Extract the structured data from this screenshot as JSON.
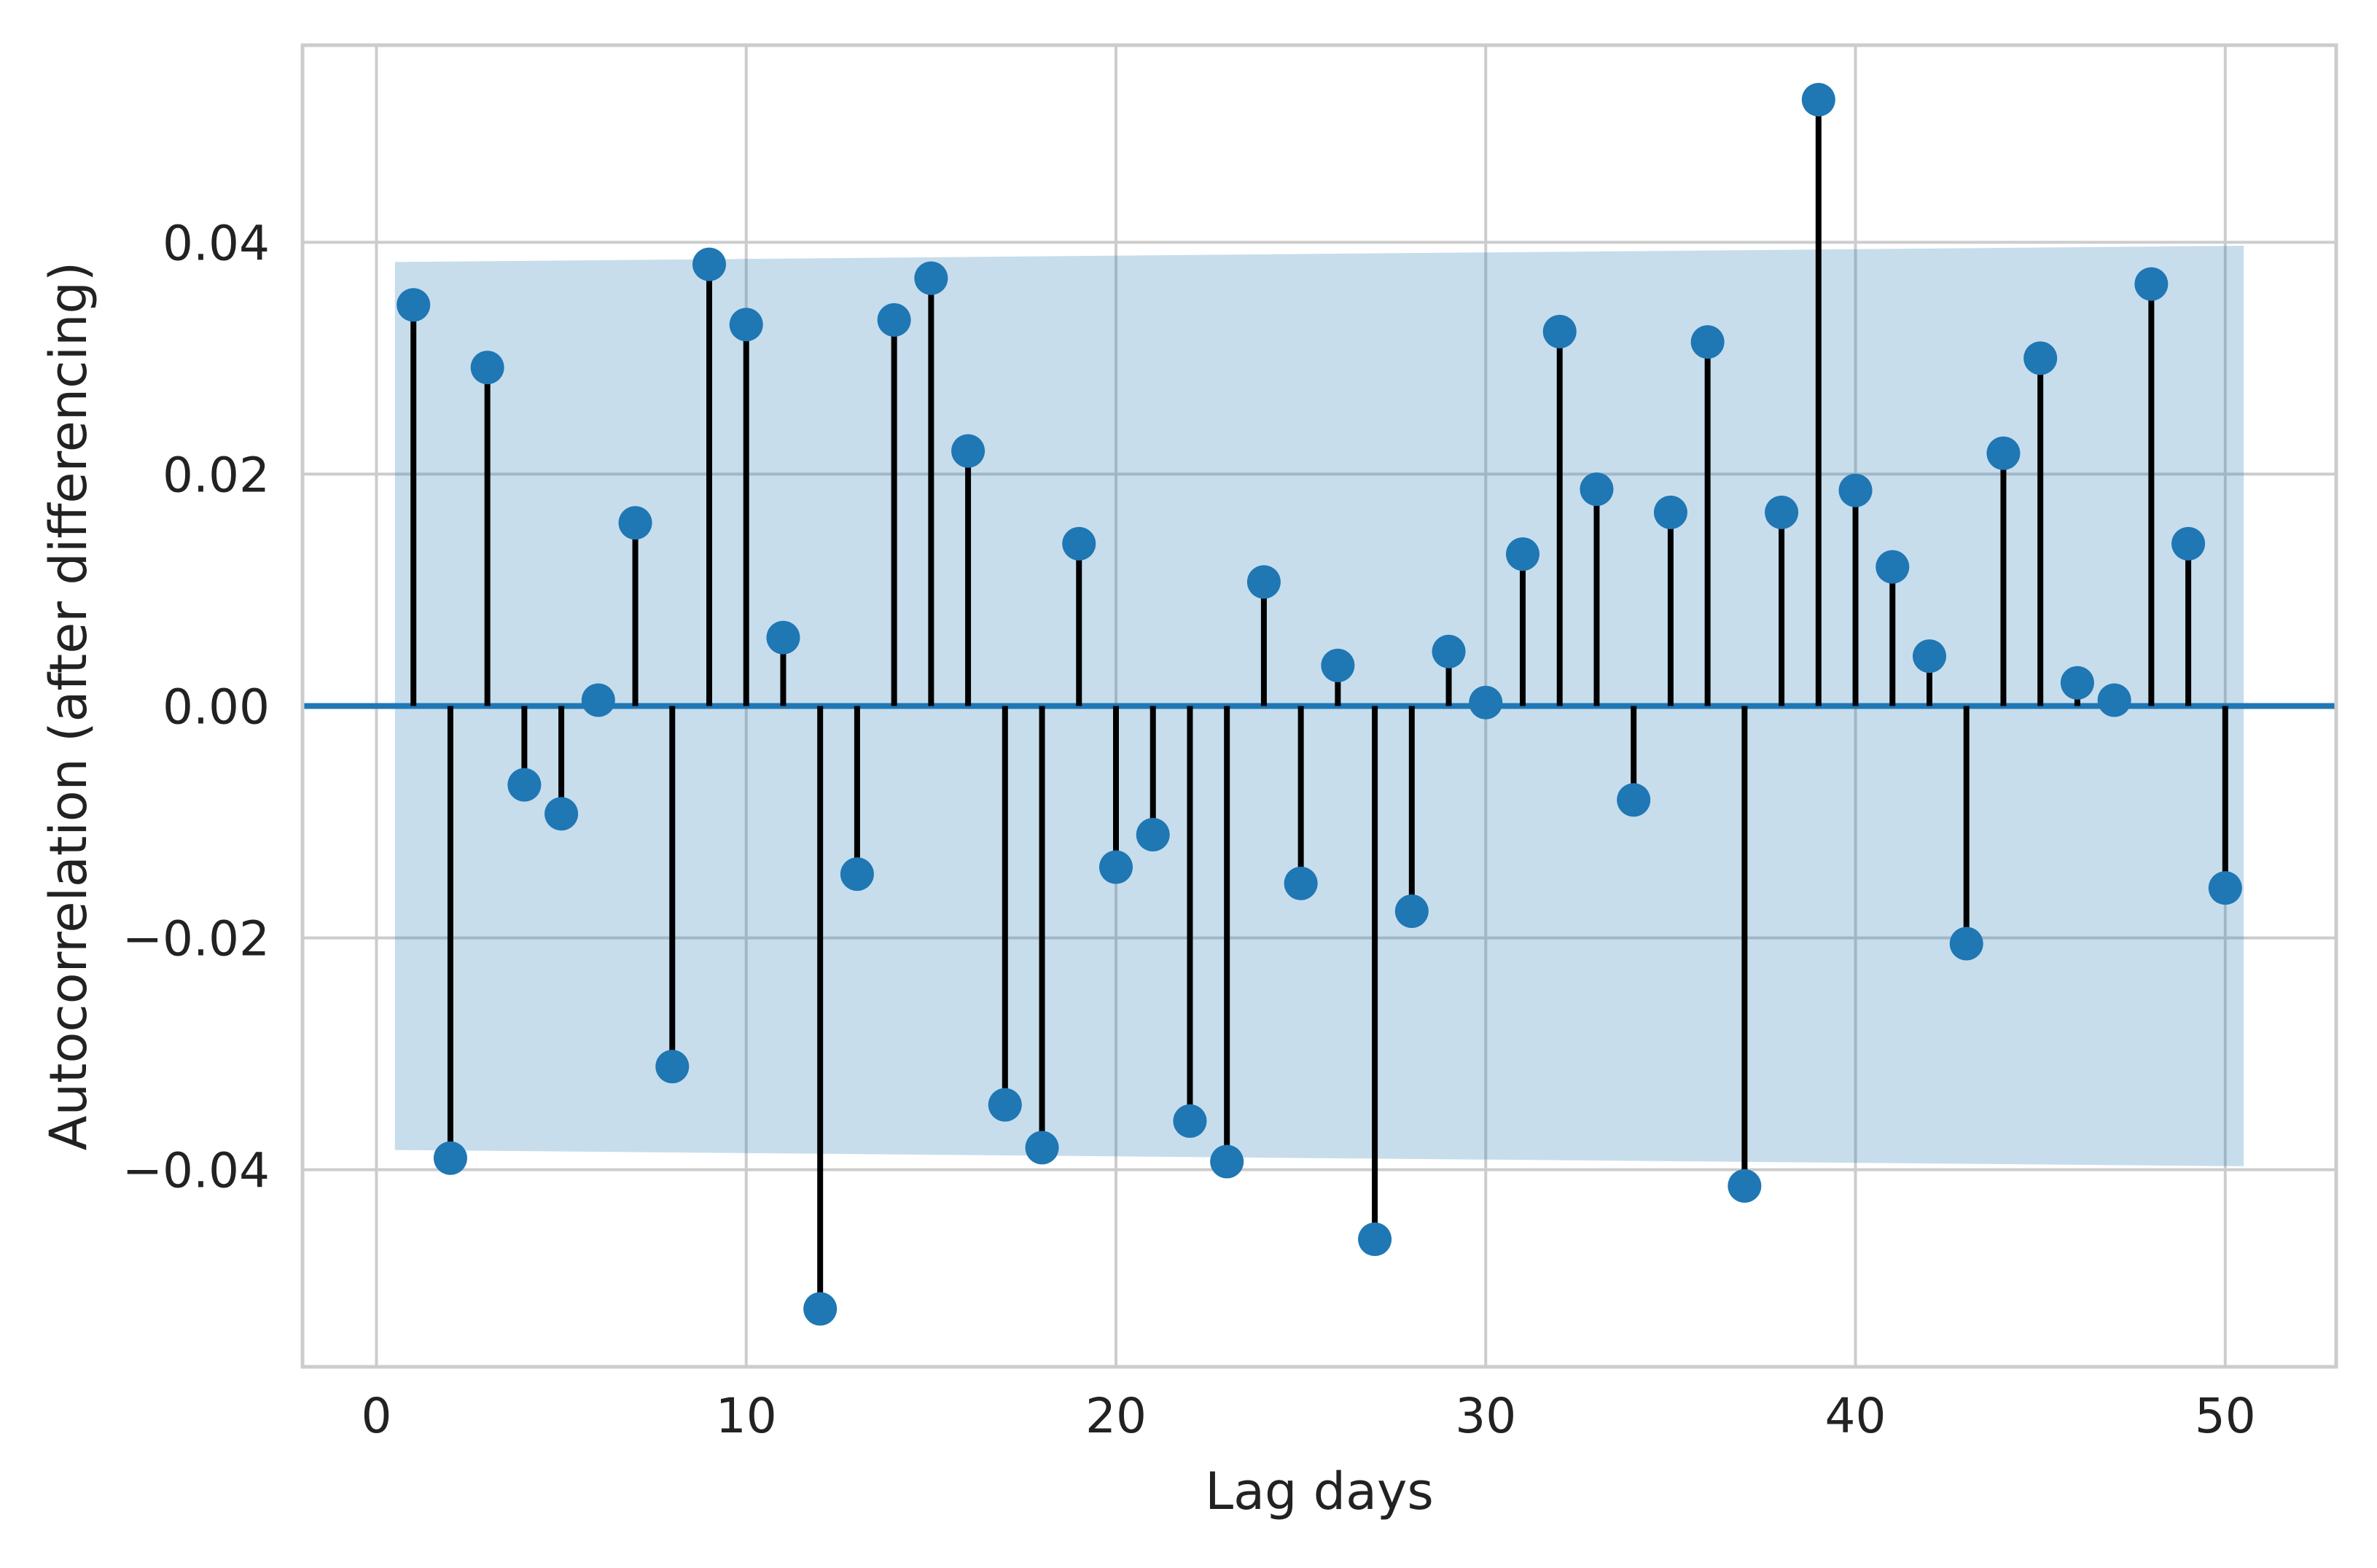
{
  "chart_data": {
    "type": "stem",
    "title": "",
    "xlabel": "Lag days",
    "ylabel": "Autocorrelation (after differencing)",
    "xlim": [
      -2,
      53
    ],
    "ylim": [
      -0.057,
      0.057
    ],
    "xticks": [
      0,
      10,
      20,
      30,
      40,
      50
    ],
    "xtick_labels": [
      "0",
      "10",
      "20",
      "30",
      "40",
      "50"
    ],
    "yticks": [
      -0.04,
      -0.02,
      0.0,
      0.02,
      0.04
    ],
    "ytick_labels": [
      "−0.04",
      "−0.02",
      "0.00",
      "0.02",
      "0.04"
    ],
    "grid": true,
    "legend": "none",
    "series": [
      {
        "x": [
          1,
          2,
          3,
          4,
          5,
          6,
          7,
          8,
          9,
          10,
          11,
          12,
          13,
          14,
          15,
          16,
          17,
          18,
          19,
          20,
          21,
          22,
          23,
          24,
          25,
          26,
          27,
          28,
          29,
          30,
          31,
          32,
          33,
          34,
          35,
          36,
          37,
          38,
          39,
          40,
          41,
          42,
          43,
          44,
          45,
          46,
          47,
          48,
          49,
          50
        ],
        "values": [
          0.0346,
          -0.039,
          0.0292,
          -0.0068,
          -0.0093,
          0.0005,
          0.0158,
          -0.0311,
          0.0381,
          0.0329,
          0.0059,
          -0.052,
          -0.0145,
          0.0333,
          0.0369,
          0.022,
          -0.0344,
          -0.0381,
          0.014,
          -0.0139,
          -0.0111,
          -0.0358,
          -0.0393,
          0.0107,
          -0.0153,
          0.0035,
          -0.046,
          -0.0177,
          0.0047,
          0.0003,
          0.0131,
          0.0323,
          0.0187,
          -0.0081,
          0.0167,
          0.0314,
          -0.0414,
          0.0167,
          0.0523,
          0.0186,
          0.012,
          0.0043,
          -0.0205,
          0.0218,
          0.03,
          0.002,
          0.0005,
          0.0364,
          0.014,
          -0.0157
        ]
      }
    ],
    "confidence_band": {
      "x": [
        0.5,
        50.5
      ],
      "upper": [
        0.0383,
        0.0397
      ],
      "lower": [
        -0.0383,
        -0.0397
      ]
    },
    "colors": {
      "marker": "#1f77b4",
      "stem": "#000000",
      "baseline": "#1f77b4",
      "band": "#1f77b4",
      "grid": "#cccccc",
      "frame": "#cccccc"
    }
  }
}
